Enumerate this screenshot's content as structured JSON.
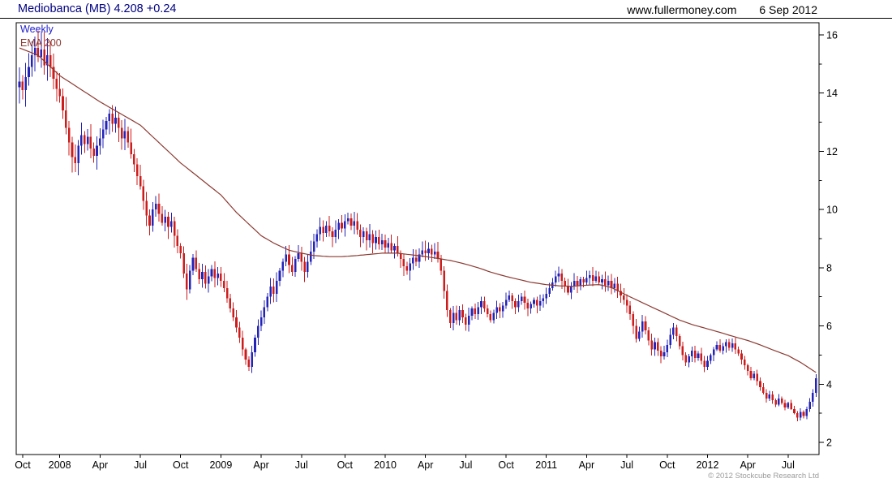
{
  "header": {
    "title": "Mediobanca (MB) 4.208 +0.24",
    "website": "www.fullermoney.com",
    "date": "6 Sep 2012"
  },
  "chart": {
    "timeframe_label": "Weekly",
    "overlay_label": "EMA 200",
    "copyright": "© 2012 Stockcube Research Ltd",
    "colors": {
      "up": "#2323b8",
      "down": "#cc1c1c",
      "ema": "#8b3a32",
      "title": "#000080",
      "weekly_label": "#2222cc",
      "axis_text": "#000000",
      "copyright_text": "#9a9a9a"
    }
  },
  "chart_data": {
    "type": "candlestick",
    "title": "Mediobanca (MB) weekly candlesticks with 200-week EMA",
    "x_unit": "week",
    "ylim": [
      1.6,
      16.4
    ],
    "y_ticks_major": [
      2,
      4,
      6,
      8,
      10,
      12,
      14,
      16
    ],
    "y_ticks_minor": [
      3,
      5,
      7,
      9,
      11,
      13,
      15
    ],
    "x_ticks": [
      {
        "week": 0,
        "label": "Oct"
      },
      {
        "week": 13,
        "label": "2008"
      },
      {
        "week": 26,
        "label": "Apr"
      },
      {
        "week": 39,
        "label": "Jul"
      },
      {
        "week": 52,
        "label": "Oct"
      },
      {
        "week": 65,
        "label": "2009"
      },
      {
        "week": 78,
        "label": "Apr"
      },
      {
        "week": 91,
        "label": "Jul"
      },
      {
        "week": 105,
        "label": "Oct"
      },
      {
        "week": 118,
        "label": "2010"
      },
      {
        "week": 131,
        "label": "Apr"
      },
      {
        "week": 144,
        "label": "Jul"
      },
      {
        "week": 157,
        "label": "Oct"
      },
      {
        "week": 170,
        "label": "2011"
      },
      {
        "week": 183,
        "label": "Apr"
      },
      {
        "week": 196,
        "label": "Jul"
      },
      {
        "week": 209,
        "label": "Oct"
      },
      {
        "week": 222,
        "label": "2012"
      },
      {
        "week": 235,
        "label": "Apr"
      },
      {
        "week": 248,
        "label": "Jul"
      }
    ],
    "first_open": 14.2,
    "closes": [
      14.4,
      14.1,
      14.55,
      14.9,
      15.3,
      15.55,
      15.25,
      15.5,
      14.95,
      15.3,
      14.9,
      14.5,
      14.15,
      13.9,
      13.4,
      12.8,
      12.3,
      11.8,
      11.6,
      12.2,
      12.55,
      12.25,
      12.5,
      12.1,
      11.85,
      12.2,
      12.45,
      12.75,
      13.05,
      13.3,
      12.95,
      13.15,
      12.8,
      12.45,
      12.7,
      12.3,
      11.9,
      11.55,
      11.15,
      10.8,
      10.3,
      9.8,
      9.45,
      10.0,
      10.2,
      9.85,
      9.55,
      9.75,
      9.4,
      9.6,
      9.1,
      8.75,
      8.5,
      7.8,
      7.25,
      7.9,
      8.35,
      7.95,
      7.6,
      7.85,
      7.45,
      7.7,
      7.95,
      7.65,
      7.8,
      7.55,
      7.3,
      6.95,
      6.6,
      6.3,
      5.95,
      5.6,
      5.2,
      4.85,
      4.6,
      5.1,
      5.6,
      6.0,
      6.3,
      6.65,
      7.0,
      7.35,
      7.1,
      7.55,
      7.9,
      8.2,
      8.45,
      8.1,
      7.85,
      8.3,
      8.5,
      8.2,
      7.85,
      8.2,
      8.55,
      8.9,
      9.15,
      9.4,
      9.2,
      9.45,
      9.25,
      9.05,
      9.3,
      9.55,
      9.35,
      9.6,
      9.7,
      9.45,
      9.6,
      9.3,
      9.05,
      9.25,
      8.95,
      9.15,
      8.85,
      9.05,
      8.8,
      8.95,
      8.7,
      8.85,
      8.6,
      8.75,
      8.5,
      8.3,
      8.05,
      7.9,
      8.15,
      8.35,
      8.2,
      8.45,
      8.6,
      8.5,
      8.65,
      8.45,
      8.55,
      8.3,
      7.9,
      7.2,
      6.55,
      6.1,
      6.45,
      6.2,
      6.55,
      6.3,
      6.05,
      6.35,
      6.6,
      6.4,
      6.65,
      6.85,
      6.6,
      6.4,
      6.2,
      6.45,
      6.65,
      6.5,
      6.7,
      6.9,
      7.05,
      6.85,
      6.65,
      6.85,
      7.0,
      6.8,
      6.6,
      6.75,
      6.9,
      6.7,
      6.85,
      6.95,
      7.1,
      7.3,
      7.5,
      7.7,
      7.8,
      7.55,
      7.35,
      7.15,
      7.35,
      7.55,
      7.4,
      7.6,
      7.5,
      7.65,
      7.75,
      7.55,
      7.7,
      7.5,
      7.6,
      7.4,
      7.55,
      7.3,
      7.45,
      7.2,
      7.05,
      6.9,
      6.7,
      6.4,
      6.0,
      5.55,
      5.8,
      6.15,
      5.85,
      5.5,
      5.2,
      5.45,
      5.15,
      4.95,
      5.1,
      5.35,
      5.7,
      5.95,
      5.65,
      5.3,
      5.0,
      4.75,
      4.95,
      5.15,
      4.9,
      5.05,
      4.8,
      4.6,
      4.8,
      5.0,
      5.2,
      5.35,
      5.15,
      5.3,
      5.45,
      5.25,
      5.4,
      5.2,
      5.05,
      4.85,
      4.65,
      4.45,
      4.2,
      4.35,
      4.1,
      3.9,
      3.7,
      3.5,
      3.65,
      3.45,
      3.3,
      3.5,
      3.35,
      3.2,
      3.35,
      3.15,
      3.0,
      2.85,
      3.05,
      2.9,
      3.15,
      3.4,
      3.7,
      4.21
    ],
    "ema200_anchors": [
      [
        0,
        15.55
      ],
      [
        6,
        15.3
      ],
      [
        13,
        14.6
      ],
      [
        26,
        13.7
      ],
      [
        39,
        12.9
      ],
      [
        52,
        11.6
      ],
      [
        65,
        10.5
      ],
      [
        70,
        9.9
      ],
      [
        74,
        9.5
      ],
      [
        78,
        9.1
      ],
      [
        82,
        8.85
      ],
      [
        87,
        8.6
      ],
      [
        91,
        8.5
      ],
      [
        95,
        8.42
      ],
      [
        100,
        8.38
      ],
      [
        104,
        8.38
      ],
      [
        109,
        8.42
      ],
      [
        113,
        8.46
      ],
      [
        117,
        8.5
      ],
      [
        122,
        8.5
      ],
      [
        126,
        8.45
      ],
      [
        130,
        8.4
      ],
      [
        135,
        8.32
      ],
      [
        139,
        8.25
      ],
      [
        143,
        8.15
      ],
      [
        148,
        8.0
      ],
      [
        152,
        7.85
      ],
      [
        157,
        7.7
      ],
      [
        161,
        7.6
      ],
      [
        165,
        7.5
      ],
      [
        170,
        7.42
      ],
      [
        174,
        7.38
      ],
      [
        178,
        7.36
      ],
      [
        183,
        7.4
      ],
      [
        187,
        7.42
      ],
      [
        191,
        7.32
      ],
      [
        196,
        7.05
      ],
      [
        200,
        6.85
      ],
      [
        204,
        6.65
      ],
      [
        209,
        6.4
      ],
      [
        213,
        6.2
      ],
      [
        217,
        6.05
      ],
      [
        222,
        5.9
      ],
      [
        226,
        5.78
      ],
      [
        230,
        5.65
      ],
      [
        235,
        5.5
      ],
      [
        239,
        5.35
      ],
      [
        243,
        5.18
      ],
      [
        248,
        4.98
      ],
      [
        252,
        4.75
      ],
      [
        257,
        4.4
      ]
    ]
  }
}
